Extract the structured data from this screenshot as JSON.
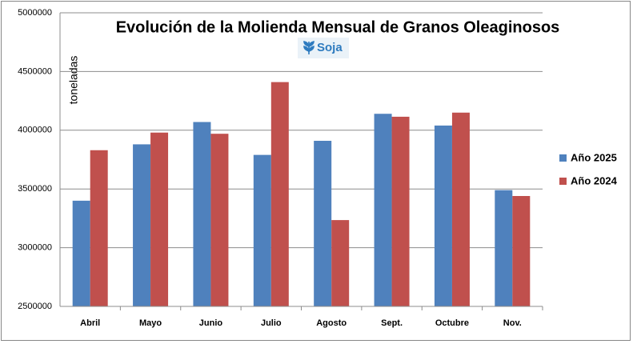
{
  "chart_data": {
    "type": "bar",
    "title": "Evolución de la Molienda Mensual de Granos Oleaginosos",
    "subtitle": "Soja",
    "y_label": "toneladas",
    "categories": [
      "Abril",
      "Mayo",
      "Junio",
      "Julio",
      "Agosto",
      "Sept.",
      "Octubre",
      "Nov."
    ],
    "series": [
      {
        "name": "Año 2025",
        "color": "#4f81bd",
        "values": [
          3400000,
          3880000,
          4070000,
          3790000,
          3910000,
          4140000,
          4040000,
          3490000
        ]
      },
      {
        "name": "Año 2024",
        "color": "#c0504d",
        "values": [
          3830000,
          3980000,
          3970000,
          4410000,
          3235000,
          4115000,
          4150000,
          3440000
        ]
      }
    ],
    "ylim": [
      2500000,
      5000000
    ],
    "yticks": [
      2500000,
      3000000,
      3500000,
      4000000,
      4500000,
      5000000
    ],
    "grid": true,
    "legend": "right"
  }
}
